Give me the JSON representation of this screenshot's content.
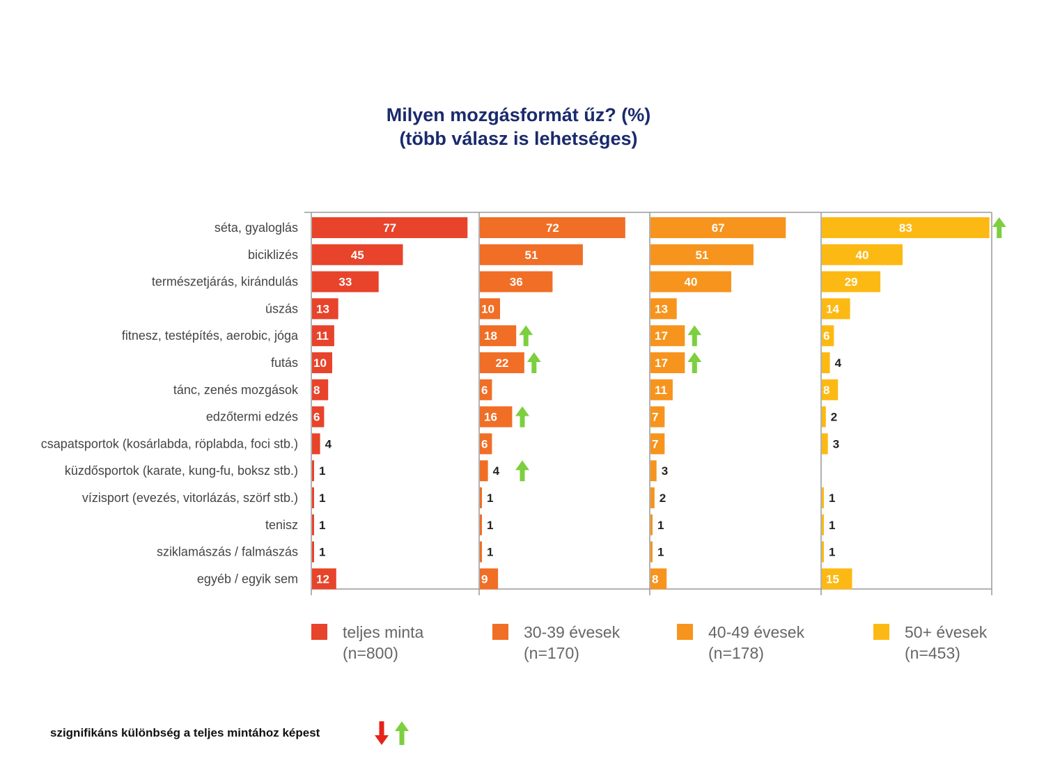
{
  "title_line1": "Milyen mozgásformát űz? (%)",
  "title_line2": "(több válasz is lehetséges)",
  "footnote": "szignifikáns különbség a teljes mintához képest",
  "chart_data": {
    "type": "bar",
    "orientation": "horizontal",
    "layout": "small-multiples",
    "categories": [
      "séta, gyaloglás",
      "biciklizés",
      "természetjárás, kirándulás",
      "úszás",
      "fitnesz, testépítés, aerobic, jóga",
      "futás",
      "tánc, zenés mozgások",
      "edzőtermi edzés",
      "csapatsportok (kosárlabda, röplabda, foci stb.)",
      "küzdősportok (karate, kung-fu, boksz stb.)",
      "vízisport (evezés, vitorlázás, szörf stb.)",
      "tenisz",
      "sziklamászás / falmászás",
      "egyéb / egyik sem"
    ],
    "series": [
      {
        "name": "teljes minta",
        "n": "(n=800)",
        "color": "#e8432b",
        "values": [
          77,
          45,
          33,
          13,
          11,
          10,
          8,
          6,
          4,
          1,
          1,
          1,
          1,
          12
        ],
        "significant_up": []
      },
      {
        "name": "30-39 évesek",
        "n": "(n=170)",
        "color": "#f06e25",
        "values": [
          72,
          51,
          36,
          10,
          18,
          22,
          6,
          16,
          6,
          4,
          1,
          1,
          1,
          9
        ],
        "significant_up": [
          4,
          5,
          7,
          9
        ]
      },
      {
        "name": "40-49 évesek",
        "n": "(n=178)",
        "color": "#f7941d",
        "values": [
          67,
          51,
          40,
          13,
          17,
          17,
          11,
          7,
          7,
          3,
          2,
          1,
          1,
          8
        ],
        "significant_up": [
          4,
          5
        ]
      },
      {
        "name": "50+ évesek",
        "n": "(n=453)",
        "color": "#fdb913",
        "values": [
          83,
          40,
          29,
          14,
          6,
          4,
          8,
          2,
          3,
          null,
          1,
          1,
          1,
          15
        ],
        "significant_up": [
          0
        ]
      }
    ],
    "xlim": [
      0,
      100
    ],
    "grid": false,
    "legend_position": "bottom",
    "arrow_up_color": "#7ccf3f",
    "arrow_down_color": "#e5231b"
  }
}
